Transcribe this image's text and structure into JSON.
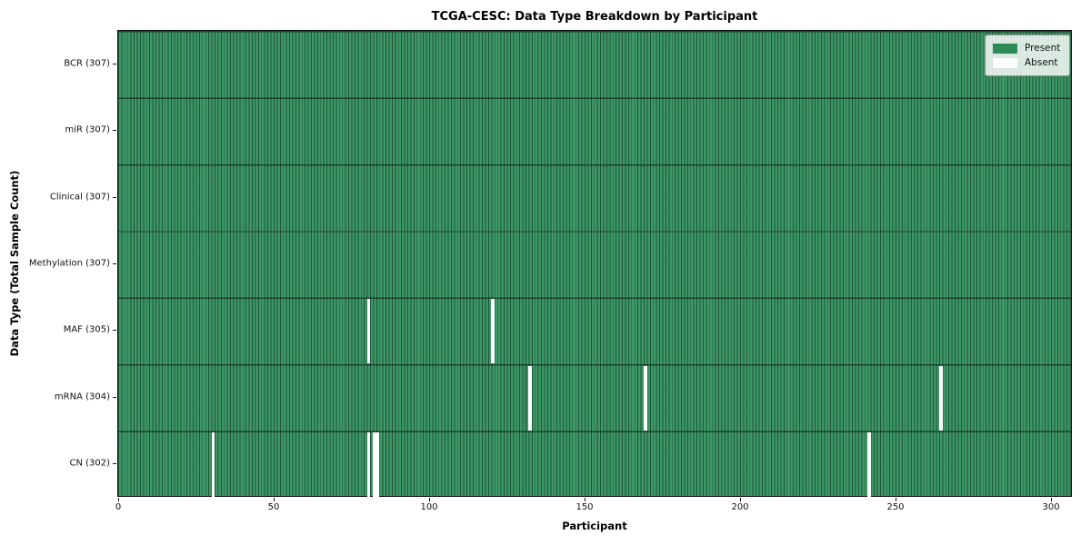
{
  "chart_data": {
    "type": "heatmap",
    "title": "TCGA-CESC: Data Type Breakdown by Participant",
    "xlabel": "Participant",
    "ylabel": "Data Type (Total Sample Count)",
    "x_range": [
      0,
      307
    ],
    "x_ticks": [
      0,
      50,
      100,
      150,
      200,
      250,
      300
    ],
    "n_participants": 307,
    "grid": false,
    "legend_position": "upper right",
    "legend": [
      {
        "label": "Present",
        "color": "#2e8b57"
      },
      {
        "label": "Absent",
        "color": "#ffffff"
      }
    ],
    "rows": [
      {
        "label": "BCR (307)",
        "data_type": "BCR",
        "present_count": 307,
        "absent_participants": []
      },
      {
        "label": "miR (307)",
        "data_type": "miR",
        "present_count": 307,
        "absent_participants": []
      },
      {
        "label": "Clinical (307)",
        "data_type": "Clinical",
        "present_count": 307,
        "absent_participants": []
      },
      {
        "label": "Methylation (307)",
        "data_type": "Methylation",
        "present_count": 307,
        "absent_participants": []
      },
      {
        "label": "MAF (305)",
        "data_type": "MAF",
        "present_count": 305,
        "absent_participants": [
          80,
          120
        ]
      },
      {
        "label": "mRNA (304)",
        "data_type": "mRNA",
        "present_count": 304,
        "absent_participants": [
          132,
          169,
          264
        ]
      },
      {
        "label": "CN (302)",
        "data_type": "CN",
        "present_count": 302,
        "absent_participants": [
          30,
          80,
          82,
          83,
          241
        ]
      }
    ]
  }
}
